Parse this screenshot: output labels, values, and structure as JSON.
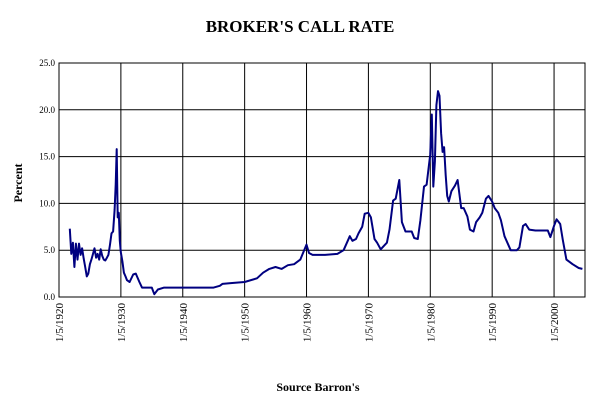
{
  "chart_data": {
    "type": "line",
    "title": "BROKER'S  CALL RATE",
    "xlabel": "Source Barron's",
    "ylabel": "Percent",
    "ylim": [
      0,
      25
    ],
    "xlim": [
      "1/5/1920",
      "1/5/2005"
    ],
    "grid": true,
    "y_ticks": [
      "0.0",
      "5.0",
      "10.0",
      "15.0",
      "20.0",
      "25.0"
    ],
    "x_ticks": [
      "1/5/1920",
      "1/5/1930",
      "1/5/1940",
      "1/5/1950",
      "1/5/1960",
      "1/5/1970",
      "1/5/1980",
      "1/5/1990",
      "1/5/2000"
    ],
    "colors": {
      "line": "#000080",
      "grid": "#000000"
    },
    "series": [
      {
        "name": "",
        "x": [
          "1921-10",
          "1922-01",
          "1922-04",
          "1922-07",
          "1922-10",
          "1923-01",
          "1923-04",
          "1923-07",
          "1923-10",
          "1924-01",
          "1924-04",
          "1924-07",
          "1924-10",
          "1925-01",
          "1925-04",
          "1925-07",
          "1925-10",
          "1926-01",
          "1926-04",
          "1926-07",
          "1926-10",
          "1927-01",
          "1927-04",
          "1927-07",
          "1927-10",
          "1928-01",
          "1928-04",
          "1928-07",
          "1928-10",
          "1929-01",
          "1929-03",
          "1929-05",
          "1929-07",
          "1929-09",
          "1929-11",
          "1930-01",
          "1930-04",
          "1930-07",
          "1930-10",
          "1931-01",
          "1931-06",
          "1932-01",
          "1932-06",
          "1933-01",
          "1933-06",
          "1934-01",
          "1934-06",
          "1935-01",
          "1935-06",
          "1936-01",
          "1937-01",
          "1940-01",
          "1945-01",
          "1946-01",
          "1946-06",
          "1948-01",
          "1950-01",
          "1952-01",
          "1953-01",
          "1954-01",
          "1955-01",
          "1956-01",
          "1957-01",
          "1958-01",
          "1959-01",
          "1960-01",
          "1960-06",
          "1961-01",
          "1963-01",
          "1965-01",
          "1966-01",
          "1967-01",
          "1967-06",
          "1968-01",
          "1968-06",
          "1969-01",
          "1969-06",
          "1970-01",
          "1970-06",
          "1971-01",
          "1971-06",
          "1972-01",
          "1973-01",
          "1973-06",
          "1974-01",
          "1974-06",
          "1975-01",
          "1975-06",
          "1976-01",
          "1977-01",
          "1977-06",
          "1978-01",
          "1978-06",
          "1979-01",
          "1979-06",
          "1980-01",
          "1980-04",
          "1980-07",
          "1980-10",
          "1981-01",
          "1981-04",
          "1981-07",
          "1981-10",
          "1982-01",
          "1982-04",
          "1982-07",
          "1982-10",
          "1983-01",
          "1983-06",
          "1984-01",
          "1984-06",
          "1985-01",
          "1985-06",
          "1986-01",
          "1986-06",
          "1987-01",
          "1987-06",
          "1988-01",
          "1988-06",
          "1989-01",
          "1989-06",
          "1990-01",
          "1990-06",
          "1991-01",
          "1991-06",
          "1992-01",
          "1993-01",
          "1994-01",
          "1994-06",
          "1995-01",
          "1995-06",
          "1996-01",
          "1997-01",
          "1998-01",
          "1999-01",
          "1999-06",
          "2000-01",
          "2000-06",
          "2001-01",
          "2001-06",
          "2002-01",
          "2003-01",
          "2004-01",
          "2004-08"
        ],
        "values": [
          7.3,
          4.6,
          5.8,
          3.2,
          5.7,
          4.0,
          5.7,
          4.5,
          5.2,
          4.1,
          3.2,
          2.2,
          2.5,
          3.5,
          4.0,
          4.6,
          5.2,
          4.2,
          4.6,
          4.0,
          5.1,
          4.4,
          4.0,
          3.9,
          4.2,
          4.5,
          5.6,
          6.8,
          7.0,
          9.3,
          12.0,
          15.8,
          8.5,
          9.0,
          6.0,
          4.8,
          3.8,
          2.6,
          2.2,
          1.8,
          1.6,
          2.4,
          2.5,
          1.6,
          1.0,
          1.0,
          1.0,
          1.0,
          0.3,
          0.8,
          1.0,
          1.0,
          1.0,
          1.2,
          1.4,
          1.5,
          1.6,
          2.0,
          2.6,
          3.0,
          3.2,
          3.0,
          3.4,
          3.5,
          4.0,
          5.6,
          4.7,
          4.5,
          4.5,
          4.6,
          5.0,
          6.5,
          6.0,
          6.2,
          6.8,
          7.5,
          8.9,
          9.0,
          8.5,
          6.2,
          5.8,
          5.1,
          5.8,
          7.2,
          10.3,
          10.5,
          12.5,
          8.0,
          7.0,
          7.0,
          6.3,
          6.2,
          8.2,
          11.8,
          12.0,
          15.2,
          19.5,
          11.8,
          14.5,
          20.5,
          22.0,
          21.5,
          17.5,
          15.5,
          16.0,
          13.0,
          10.8,
          10.2,
          11.3,
          11.9,
          12.5,
          9.5,
          9.5,
          8.6,
          7.2,
          7.0,
          8.0,
          8.5,
          9.0,
          10.5,
          10.8,
          10.2,
          9.5,
          9.0,
          8.2,
          6.5,
          5.0,
          5.0,
          5.3,
          7.6,
          7.8,
          7.2,
          7.1,
          7.1,
          7.1,
          6.4,
          7.6,
          8.3,
          7.8,
          6.1,
          4.0,
          3.5,
          3.1,
          3.0
        ]
      }
    ]
  }
}
